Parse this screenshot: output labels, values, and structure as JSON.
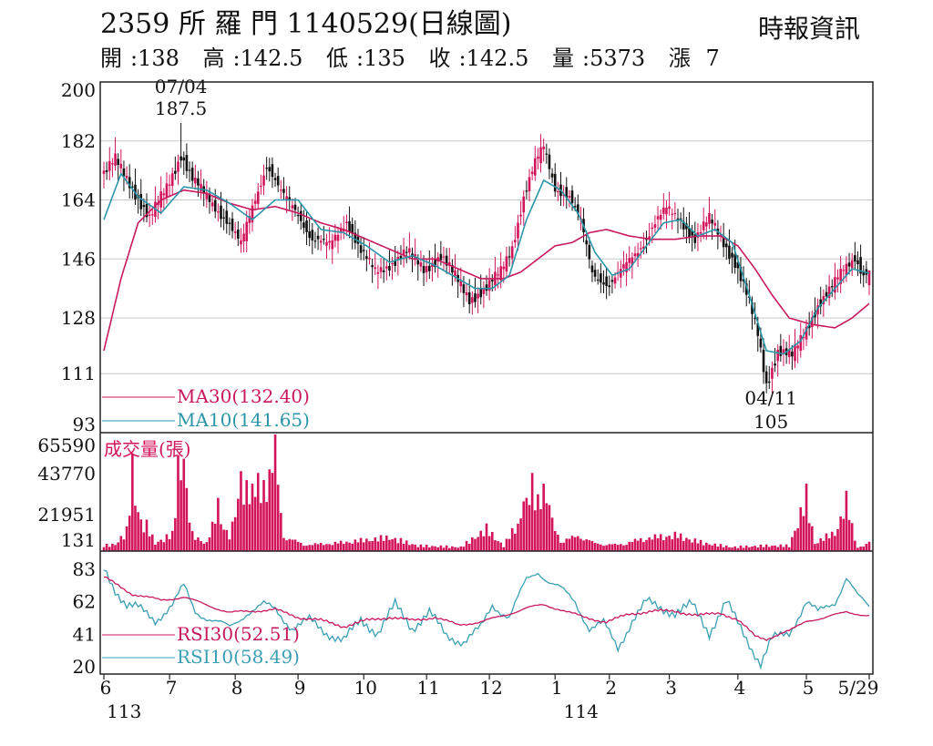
{
  "header": {
    "title": "2359 所 羅 門 1140529(日線圖)",
    "source": "時報資訊",
    "stats": [
      {
        "label": "開",
        "value": "138"
      },
      {
        "label": "高",
        "value": "142.5"
      },
      {
        "label": "低",
        "value": "135"
      },
      {
        "label": "收",
        "value": "142.5"
      },
      {
        "label": "量",
        "value": "5373"
      },
      {
        "label": "漲",
        "value": "7"
      }
    ]
  },
  "colors": {
    "up": "#d4145a",
    "down": "#111111",
    "ma30": "#c8185e",
    "ma10": "#2a96a8",
    "rsi30": "#c8185e",
    "rsi10": "#3a9fb4",
    "volume": "#d4145a",
    "grid": "#c8c8c8",
    "frame": "#222222"
  },
  "chart_data": {
    "type": "candlestick",
    "price_axis": {
      "ticks": [
        "200",
        "182",
        "164",
        "146",
        "128",
        "111",
        "93"
      ],
      "range": [
        93,
        200
      ]
    },
    "volume_axis": {
      "ticks": [
        "65590",
        "43770",
        "21951",
        "131"
      ],
      "range": [
        131,
        65590
      ],
      "title": "成交量(張)"
    },
    "rsi_axis": {
      "ticks": [
        "83",
        "62",
        "41",
        "20"
      ],
      "range": [
        20,
        83
      ]
    },
    "x_ticks": [
      "6",
      "7",
      "8",
      "9",
      "10",
      "11",
      "12",
      "1",
      "2",
      "3",
      "4",
      "5",
      "5/29"
    ],
    "x_tick_days": [
      0,
      23,
      46,
      68,
      91,
      113,
      135,
      158,
      177,
      198,
      222,
      246,
      268
    ],
    "year_labels": [
      {
        "day": 2,
        "text": "113"
      },
      {
        "day": 162,
        "text": "114"
      }
    ],
    "days": 269,
    "annotations": [
      {
        "date": "07/04",
        "value": "187.5",
        "day": 27,
        "price": 187.5
      },
      {
        "date": "04/11",
        "value": "105",
        "day": 232,
        "price": 105
      }
    ],
    "legend": {
      "ma30": "MA30(132.40)",
      "ma10": "MA10(141.65)",
      "rsi30": "RSI30(52.51)",
      "rsi10": "RSI10(58.49)"
    },
    "close_keys": [
      [
        0,
        172
      ],
      [
        4,
        176
      ],
      [
        10,
        168
      ],
      [
        16,
        158
      ],
      [
        22,
        168
      ],
      [
        27,
        178
      ],
      [
        31,
        170
      ],
      [
        37,
        164
      ],
      [
        43,
        158
      ],
      [
        48,
        150
      ],
      [
        52,
        162
      ],
      [
        57,
        175
      ],
      [
        62,
        166
      ],
      [
        68,
        160
      ],
      [
        73,
        152
      ],
      [
        79,
        150
      ],
      [
        85,
        158
      ],
      [
        90,
        148
      ],
      [
        95,
        142
      ],
      [
        101,
        145
      ],
      [
        106,
        148
      ],
      [
        112,
        143
      ],
      [
        118,
        147
      ],
      [
        124,
        139
      ],
      [
        128,
        134
      ],
      [
        134,
        137
      ],
      [
        139,
        142
      ],
      [
        143,
        150
      ],
      [
        147,
        165
      ],
      [
        151,
        175
      ],
      [
        154,
        180
      ],
      [
        158,
        168
      ],
      [
        163,
        165
      ],
      [
        167,
        157
      ],
      [
        171,
        142
      ],
      [
        177,
        138
      ],
      [
        182,
        143
      ],
      [
        188,
        150
      ],
      [
        193,
        157
      ],
      [
        197,
        161
      ],
      [
        202,
        158
      ],
      [
        207,
        152
      ],
      [
        212,
        158
      ],
      [
        216,
        153
      ],
      [
        221,
        145
      ],
      [
        225,
        135
      ],
      [
        229,
        123
      ],
      [
        232,
        108
      ],
      [
        236,
        118
      ],
      [
        241,
        116
      ],
      [
        246,
        125
      ],
      [
        250,
        132
      ],
      [
        255,
        137
      ],
      [
        259,
        143
      ],
      [
        263,
        147
      ],
      [
        266,
        141
      ],
      [
        268,
        142.5
      ]
    ],
    "volume_keys": [
      [
        0,
        4000
      ],
      [
        4,
        5000
      ],
      [
        8,
        14000
      ],
      [
        10,
        55000
      ],
      [
        12,
        22000
      ],
      [
        15,
        18000
      ],
      [
        18,
        6000
      ],
      [
        24,
        12000
      ],
      [
        26,
        54000
      ],
      [
        28,
        52000
      ],
      [
        31,
        12000
      ],
      [
        36,
        6000
      ],
      [
        40,
        30000
      ],
      [
        44,
        10000
      ],
      [
        48,
        45000
      ],
      [
        50,
        40000
      ],
      [
        52,
        38000
      ],
      [
        54,
        44000
      ],
      [
        56,
        40000
      ],
      [
        58,
        46000
      ],
      [
        60,
        65590
      ],
      [
        63,
        12000
      ],
      [
        70,
        5000
      ],
      [
        80,
        6000
      ],
      [
        100,
        10000
      ],
      [
        110,
        4000
      ],
      [
        125,
        3000
      ],
      [
        134,
        16000
      ],
      [
        140,
        4000
      ],
      [
        147,
        28000
      ],
      [
        150,
        44000
      ],
      [
        152,
        32000
      ],
      [
        154,
        38000
      ],
      [
        156,
        26000
      ],
      [
        160,
        8000
      ],
      [
        167,
        12000
      ],
      [
        172,
        6000
      ],
      [
        180,
        5000
      ],
      [
        190,
        10000
      ],
      [
        200,
        12000
      ],
      [
        210,
        6000
      ],
      [
        220,
        3000
      ],
      [
        232,
        4000
      ],
      [
        240,
        4000
      ],
      [
        246,
        38000
      ],
      [
        249,
        6000
      ],
      [
        256,
        14000
      ],
      [
        260,
        34000
      ],
      [
        264,
        3000
      ],
      [
        268,
        5373
      ]
    ],
    "rsi10_keys": [
      [
        0,
        83
      ],
      [
        4,
        70
      ],
      [
        8,
        60
      ],
      [
        12,
        58
      ],
      [
        18,
        50
      ],
      [
        24,
        60
      ],
      [
        28,
        72
      ],
      [
        32,
        56
      ],
      [
        38,
        50
      ],
      [
        44,
        45
      ],
      [
        50,
        55
      ],
      [
        56,
        60
      ],
      [
        60,
        57
      ],
      [
        66,
        45
      ],
      [
        72,
        50
      ],
      [
        78,
        42
      ],
      [
        84,
        37
      ],
      [
        90,
        50
      ],
      [
        96,
        42
      ],
      [
        102,
        60
      ],
      [
        108,
        45
      ],
      [
        114,
        55
      ],
      [
        120,
        40
      ],
      [
        126,
        36
      ],
      [
        132,
        45
      ],
      [
        136,
        60
      ],
      [
        142,
        52
      ],
      [
        148,
        76
      ],
      [
        152,
        82
      ],
      [
        156,
        75
      ],
      [
        160,
        70
      ],
      [
        165,
        62
      ],
      [
        170,
        45
      ],
      [
        175,
        48
      ],
      [
        180,
        32
      ],
      [
        185,
        50
      ],
      [
        190,
        62
      ],
      [
        195,
        58
      ],
      [
        200,
        55
      ],
      [
        206,
        60
      ],
      [
        212,
        42
      ],
      [
        218,
        62
      ],
      [
        222,
        48
      ],
      [
        226,
        35
      ],
      [
        230,
        22
      ],
      [
        234,
        38
      ],
      [
        240,
        42
      ],
      [
        246,
        62
      ],
      [
        250,
        55
      ],
      [
        256,
        62
      ],
      [
        260,
        78
      ],
      [
        264,
        65
      ],
      [
        268,
        58.49
      ]
    ],
    "rsi30_keys": [
      [
        0,
        78
      ],
      [
        10,
        67
      ],
      [
        20,
        63
      ],
      [
        28,
        65
      ],
      [
        36,
        60
      ],
      [
        44,
        55
      ],
      [
        52,
        56
      ],
      [
        60,
        57
      ],
      [
        68,
        52
      ],
      [
        76,
        50
      ],
      [
        84,
        46
      ],
      [
        92,
        50
      ],
      [
        100,
        52
      ],
      [
        108,
        50
      ],
      [
        116,
        52
      ],
      [
        124,
        47
      ],
      [
        132,
        49
      ],
      [
        140,
        53
      ],
      [
        148,
        58
      ],
      [
        154,
        60
      ],
      [
        160,
        57
      ],
      [
        168,
        52
      ],
      [
        176,
        49
      ],
      [
        184,
        54
      ],
      [
        192,
        56
      ],
      [
        200,
        56
      ],
      [
        208,
        53
      ],
      [
        216,
        55
      ],
      [
        222,
        50
      ],
      [
        228,
        40
      ],
      [
        232,
        38
      ],
      [
        240,
        43
      ],
      [
        246,
        50
      ],
      [
        252,
        51
      ],
      [
        260,
        56
      ],
      [
        266,
        53
      ],
      [
        268,
        52.51
      ]
    ],
    "ma10_keys": [
      [
        0,
        158
      ],
      [
        6,
        172
      ],
      [
        12,
        165
      ],
      [
        20,
        160
      ],
      [
        28,
        168
      ],
      [
        36,
        167
      ],
      [
        44,
        163
      ],
      [
        52,
        158
      ],
      [
        60,
        164
      ],
      [
        68,
        164
      ],
      [
        76,
        155
      ],
      [
        84,
        154
      ],
      [
        92,
        150
      ],
      [
        100,
        145
      ],
      [
        108,
        147
      ],
      [
        116,
        144
      ],
      [
        124,
        140
      ],
      [
        130,
        137
      ],
      [
        136,
        137
      ],
      [
        142,
        141
      ],
      [
        148,
        158
      ],
      [
        154,
        170
      ],
      [
        160,
        167
      ],
      [
        166,
        160
      ],
      [
        172,
        148
      ],
      [
        178,
        141
      ],
      [
        184,
        143
      ],
      [
        190,
        150
      ],
      [
        196,
        157
      ],
      [
        202,
        158
      ],
      [
        208,
        153
      ],
      [
        214,
        155
      ],
      [
        220,
        151
      ],
      [
        226,
        135
      ],
      [
        232,
        118
      ],
      [
        238,
        117
      ],
      [
        244,
        121
      ],
      [
        250,
        131
      ],
      [
        256,
        137
      ],
      [
        262,
        143
      ],
      [
        268,
        141.65
      ]
    ],
    "ma30_keys": [
      [
        0,
        118
      ],
      [
        6,
        140
      ],
      [
        12,
        157
      ],
      [
        20,
        164
      ],
      [
        28,
        167
      ],
      [
        36,
        166
      ],
      [
        44,
        163
      ],
      [
        52,
        161
      ],
      [
        60,
        162
      ],
      [
        68,
        160
      ],
      [
        76,
        157
      ],
      [
        84,
        155
      ],
      [
        92,
        152
      ],
      [
        100,
        149
      ],
      [
        108,
        146
      ],
      [
        116,
        146
      ],
      [
        124,
        143
      ],
      [
        132,
        140
      ],
      [
        140,
        140
      ],
      [
        146,
        142
      ],
      [
        152,
        146
      ],
      [
        158,
        150
      ],
      [
        164,
        151
      ],
      [
        170,
        154
      ],
      [
        176,
        155
      ],
      [
        184,
        153
      ],
      [
        192,
        152
      ],
      [
        200,
        152
      ],
      [
        208,
        153
      ],
      [
        216,
        153
      ],
      [
        222,
        150
      ],
      [
        228,
        143
      ],
      [
        234,
        135
      ],
      [
        240,
        128
      ],
      [
        248,
        126
      ],
      [
        256,
        125
      ],
      [
        262,
        128
      ],
      [
        268,
        132.4
      ]
    ]
  }
}
